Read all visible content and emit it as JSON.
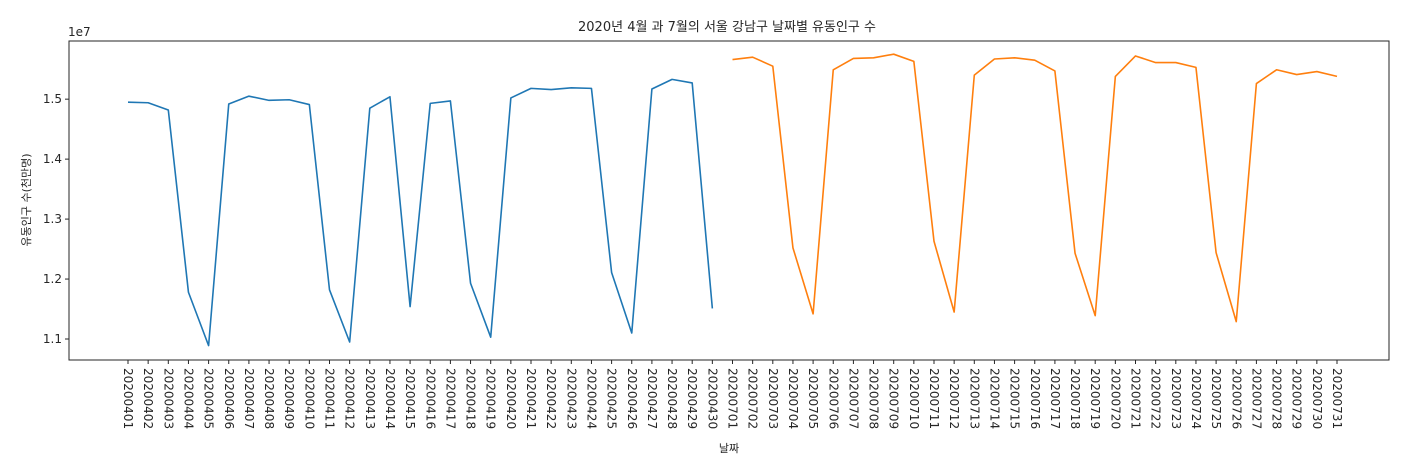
{
  "chart_data": {
    "type": "line",
    "title": "2020년 4월 과 7월의 서울 강남구 날짜별 유동인구 수",
    "xlabel": "날짜",
    "ylabel": "유동인구 수(천만명)",
    "y_offset_label": "1e7",
    "ylim": [
      1.065,
      1.597
    ],
    "yticks": [
      1.1,
      1.2,
      1.3,
      1.4,
      1.5
    ],
    "grid": false,
    "categories": [
      "20200401",
      "20200402",
      "20200403",
      "20200404",
      "20200405",
      "20200406",
      "20200407",
      "20200408",
      "20200409",
      "20200410",
      "20200411",
      "20200412",
      "20200413",
      "20200414",
      "20200415",
      "20200416",
      "20200417",
      "20200418",
      "20200419",
      "20200420",
      "20200421",
      "20200422",
      "20200423",
      "20200424",
      "20200425",
      "20200426",
      "20200427",
      "20200428",
      "20200429",
      "20200430",
      "20200701",
      "20200702",
      "20200703",
      "20200704",
      "20200705",
      "20200706",
      "20200707",
      "20200708",
      "20200709",
      "20200710",
      "20200711",
      "20200712",
      "20200713",
      "20200714",
      "20200715",
      "20200716",
      "20200717",
      "20200718",
      "20200719",
      "20200720",
      "20200721",
      "20200722",
      "20200723",
      "20200724",
      "20200725",
      "20200726",
      "20200727",
      "20200728",
      "20200729",
      "20200730",
      "20200731"
    ],
    "series": [
      {
        "color": "#1f77b4",
        "x": [
          "20200401",
          "20200402",
          "20200403",
          "20200404",
          "20200405",
          "20200406",
          "20200407",
          "20200408",
          "20200409",
          "20200410",
          "20200411",
          "20200412",
          "20200413",
          "20200414",
          "20200415",
          "20200416",
          "20200417",
          "20200418",
          "20200419",
          "20200420",
          "20200421",
          "20200422",
          "20200423",
          "20200424",
          "20200425",
          "20200426",
          "20200427",
          "20200428",
          "20200429",
          "20200430"
        ],
        "values": [
          1.495,
          1.494,
          1.482,
          1.178,
          1.089,
          1.492,
          1.505,
          1.498,
          1.499,
          1.491,
          1.182,
          1.095,
          1.485,
          1.504,
          1.154,
          1.493,
          1.497,
          1.193,
          1.103,
          1.502,
          1.518,
          1.516,
          1.519,
          1.518,
          1.211,
          1.11,
          1.517,
          1.533,
          1.527,
          1.151
        ]
      },
      {
        "color": "#ff7f0e",
        "x": [
          "20200701",
          "20200702",
          "20200703",
          "20200704",
          "20200705",
          "20200706",
          "20200707",
          "20200708",
          "20200709",
          "20200710",
          "20200711",
          "20200712",
          "20200713",
          "20200714",
          "20200715",
          "20200716",
          "20200717",
          "20200718",
          "20200719",
          "20200720",
          "20200721",
          "20200722",
          "20200723",
          "20200724",
          "20200725",
          "20200726",
          "20200727",
          "20200728",
          "20200729",
          "20200730",
          "20200731"
        ],
        "values": [
          1.566,
          1.57,
          1.555,
          1.252,
          1.142,
          1.549,
          1.568,
          1.569,
          1.575,
          1.563,
          1.263,
          1.145,
          1.54,
          1.567,
          1.569,
          1.565,
          1.547,
          1.243,
          1.139,
          1.538,
          1.572,
          1.561,
          1.561,
          1.553,
          1.244,
          1.129,
          1.526,
          1.549,
          1.541,
          1.546,
          1.538
        ]
      }
    ]
  }
}
